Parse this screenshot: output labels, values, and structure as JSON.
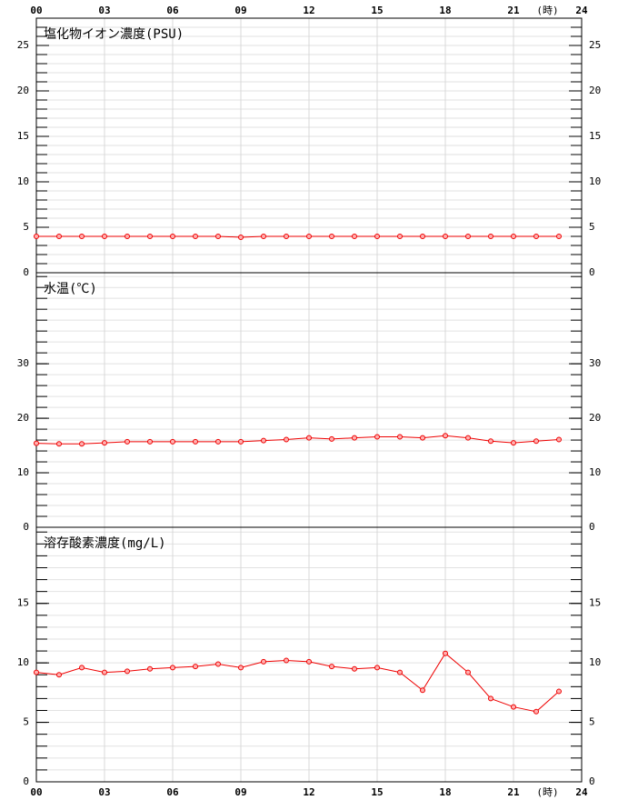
{
  "chart_data": [
    {
      "type": "line",
      "title": "塩化物イオン濃度(PSU)",
      "x": [
        0,
        1,
        2,
        3,
        4,
        5,
        6,
        7,
        8,
        9,
        10,
        11,
        12,
        13,
        14,
        15,
        16,
        17,
        18,
        19,
        20,
        21,
        22,
        23
      ],
      "series": [
        {
          "color": "#ee0000",
          "values": [
            4,
            4,
            4,
            4,
            4,
            4,
            4,
            4,
            4,
            3.9,
            4,
            4,
            4,
            4,
            4,
            4,
            4,
            4,
            4,
            4,
            4,
            4,
            4,
            4
          ]
        }
      ],
      "xlim": [
        0,
        24
      ],
      "xticks": [
        {
          "value": 0,
          "label": "00"
        },
        {
          "value": 3,
          "label": "03"
        },
        {
          "value": 6,
          "label": "06"
        },
        {
          "value": 9,
          "label": "09"
        },
        12,
        15,
        18,
        {
          "value": 21,
          "label": "21"
        },
        24
      ],
      "xlabel": "(時)",
      "ylim": [
        0,
        28
      ],
      "yticks": [
        0,
        5,
        10,
        15,
        20,
        25
      ],
      "minor_ystep": 1,
      "grid": true
    },
    {
      "type": "line",
      "title": "水温(℃)",
      "x": [
        0,
        1,
        2,
        3,
        4,
        5,
        6,
        7,
        8,
        9,
        10,
        11,
        12,
        13,
        14,
        15,
        16,
        17,
        18,
        19,
        20,
        21,
        22,
        23
      ],
      "series": [
        {
          "color": "#ee0000",
          "values": [
            15.4,
            15.3,
            15.3,
            15.5,
            15.7,
            15.7,
            15.7,
            15.7,
            15.7,
            15.7,
            15.9,
            16.1,
            16.4,
            16.2,
            16.4,
            16.6,
            16.6,
            16.4,
            16.8,
            16.4,
            15.8,
            15.5,
            15.8,
            16.1
          ]
        }
      ],
      "xlim": [
        0,
        24
      ],
      "ylim": [
        0,
        46.7
      ],
      "yticks": [
        0,
        10,
        20,
        30
      ],
      "minor_ystep": 2,
      "grid": true
    },
    {
      "type": "line",
      "title": "溶存酸素濃度(mg/L)",
      "x": [
        0,
        1,
        2,
        3,
        4,
        5,
        6,
        7,
        8,
        9,
        10,
        11,
        12,
        13,
        14,
        15,
        16,
        17,
        18,
        19,
        20,
        21,
        22,
        23
      ],
      "series": [
        {
          "color": "#ee0000",
          "values": [
            9.2,
            9,
            9.6,
            9.2,
            9.3,
            9.5,
            9.6,
            9.7,
            9.9,
            9.6,
            10.1,
            10.2,
            10.1,
            9.7,
            9.5,
            9.6,
            9.2,
            7.7,
            10.8,
            9.2,
            7,
            6.3,
            5.9,
            7.6
          ]
        }
      ],
      "xlim": [
        0,
        24
      ],
      "xticks": [
        {
          "value": 0,
          "label": "00"
        },
        {
          "value": 3,
          "label": "03"
        },
        {
          "value": 6,
          "label": "06"
        },
        {
          "value": 9,
          "label": "09"
        },
        12,
        15,
        18,
        {
          "value": 21,
          "label": "21"
        },
        24
      ],
      "xlabel": "(時)",
      "ylim": [
        0,
        21.4
      ],
      "yticks": [
        0,
        5,
        10,
        15
      ],
      "minor_ystep": 1,
      "grid": true
    }
  ]
}
